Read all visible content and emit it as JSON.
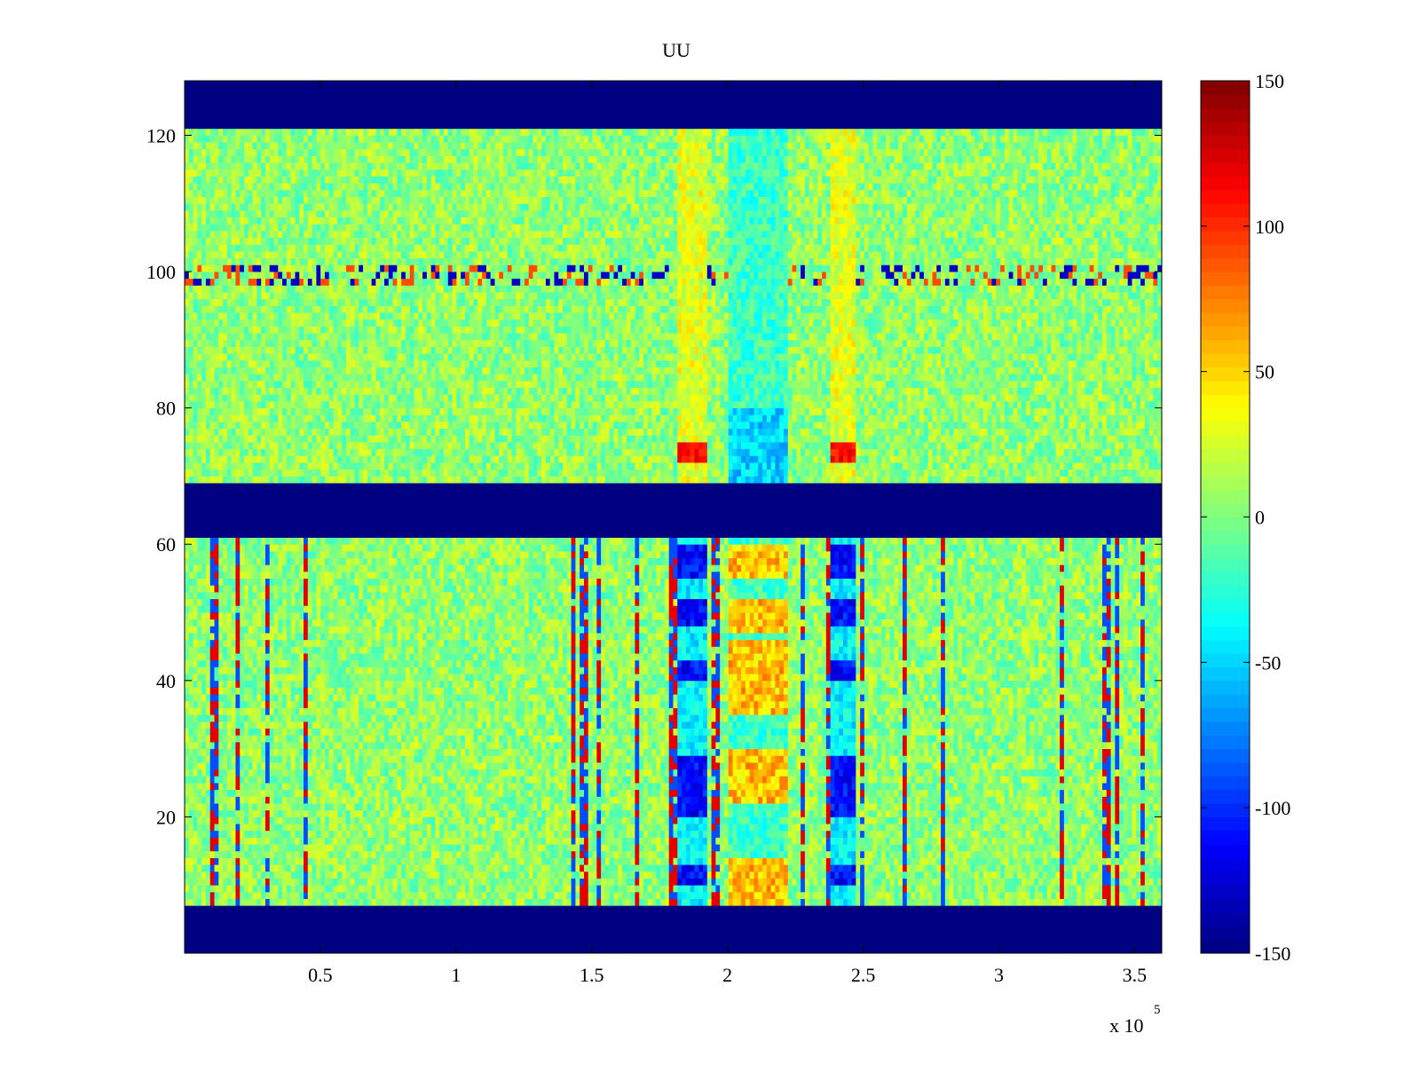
{
  "chart_data": {
    "type": "heatmap",
    "title": "UU",
    "xlabel": "",
    "ylabel": "",
    "x_multiplier_label": "x 10",
    "x_multiplier_exponent": "5",
    "xlim": [
      0,
      3.6
    ],
    "ylim": [
      0,
      128
    ],
    "x_ticks": [
      0.5,
      1,
      1.5,
      2,
      2.5,
      3,
      3.5
    ],
    "x_tick_labels": [
      "0.5",
      "1",
      "1.5",
      "2",
      "2.5",
      "3",
      "3.5"
    ],
    "y_ticks": [
      20,
      40,
      60,
      80,
      100,
      120
    ],
    "y_tick_labels": [
      "20",
      "40",
      "60",
      "80",
      "100",
      "120"
    ],
    "colorbar": {
      "colormap": "jet",
      "clim": [
        -150,
        150
      ],
      "ticks": [
        -150,
        -100,
        -50,
        0,
        50,
        100,
        150
      ],
      "tick_labels": [
        "-150",
        "-100",
        "-50",
        "0",
        "50",
        "100",
        "150"
      ]
    },
    "background_value": 5,
    "noise_amplitude": 25,
    "bands": [
      {
        "y_range": [
          0,
          7
        ],
        "value": -150,
        "description": "saturated low band"
      },
      {
        "y_range": [
          61,
          69
        ],
        "value": -150,
        "description": "saturated low band"
      },
      {
        "y_range": [
          121,
          128
        ],
        "value": -150,
        "description": "saturated low band"
      }
    ],
    "columns_of_interest": {
      "left_event_x": [
        1.82,
        1.92
      ],
      "middle_region_x": [
        2.01,
        2.22
      ],
      "right_event_x": [
        2.38,
        2.48
      ],
      "left_event_low_y_ranges": [
        [
          55,
          60
        ],
        [
          48,
          52
        ],
        [
          40,
          43
        ],
        [
          20,
          29
        ],
        [
          10,
          13
        ]
      ],
      "high_y_ranges": [
        [
          72,
          75
        ]
      ],
      "middle_high_y_ranges": [
        [
          7,
          14
        ],
        [
          22,
          30
        ],
        [
          35,
          46
        ],
        [
          47,
          52
        ],
        [
          55,
          60
        ]
      ]
    },
    "row_100_disturbed": true
  }
}
